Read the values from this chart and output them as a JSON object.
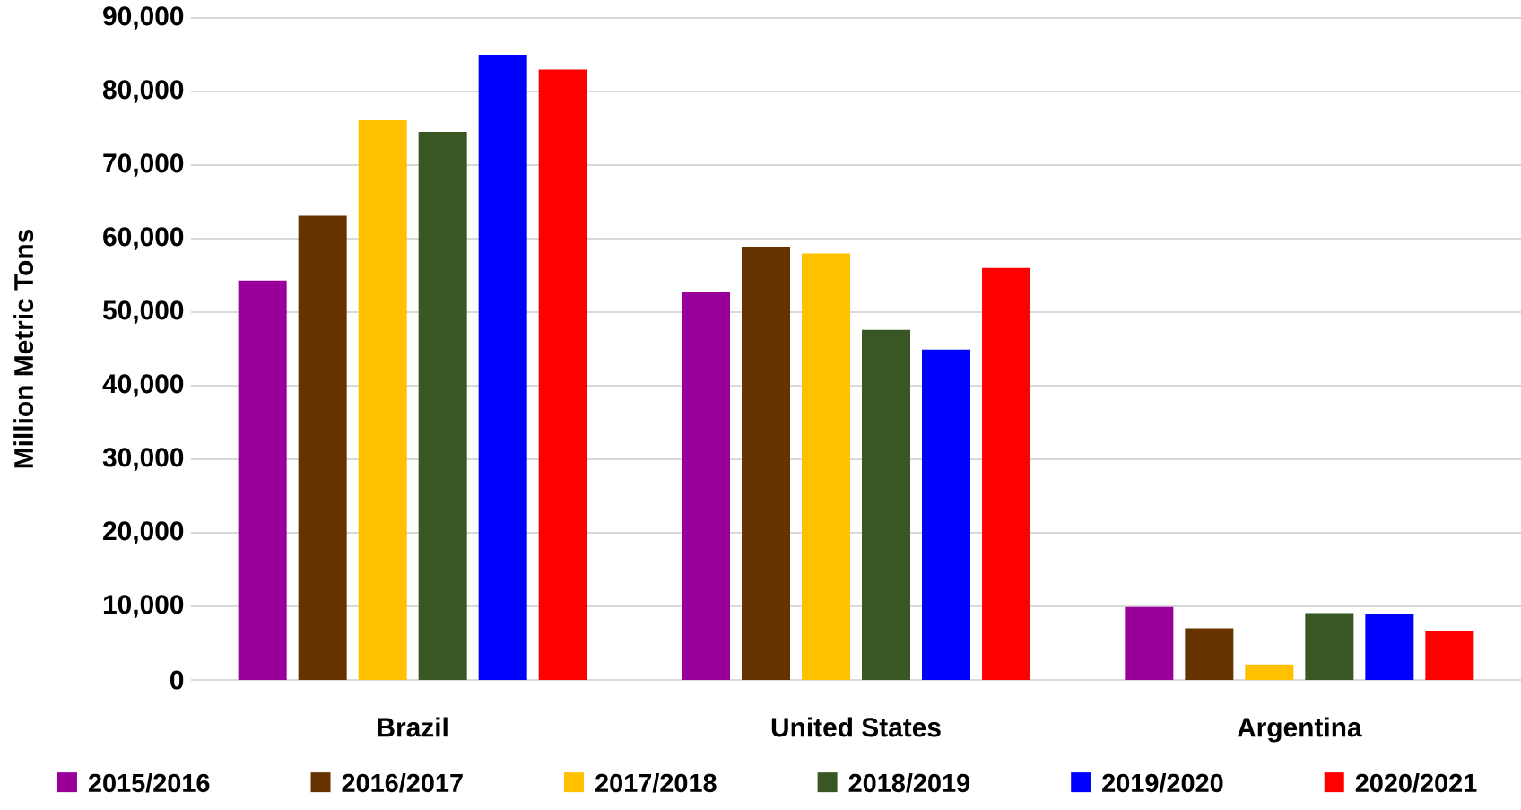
{
  "chart_data": {
    "type": "bar",
    "ylabel": "Million Metric Tons",
    "categories": [
      "Brazil",
      "United States",
      "Argentina"
    ],
    "series": [
      {
        "name": "2015/2016",
        "color": "#990099",
        "values": [
          54300,
          52800,
          9900
        ]
      },
      {
        "name": "2016/2017",
        "color": "#663300",
        "values": [
          63100,
          58900,
          7000
        ]
      },
      {
        "name": "2017/2018",
        "color": "#ffc000",
        "values": [
          76100,
          58000,
          2100
        ]
      },
      {
        "name": "2018/2019",
        "color": "#385723",
        "values": [
          74500,
          47600,
          9100
        ]
      },
      {
        "name": "2019/2020",
        "color": "#0000ff",
        "values": [
          85000,
          44900,
          8900
        ]
      },
      {
        "name": "2020/2021",
        "color": "#ff0000",
        "values": [
          83000,
          56000,
          6600
        ]
      }
    ],
    "ylim": [
      0,
      90000
    ],
    "yticks": [
      {
        "value": 0,
        "label": "0"
      },
      {
        "value": 10000,
        "label": "10,000"
      },
      {
        "value": 20000,
        "label": "20,000"
      },
      {
        "value": 30000,
        "label": "30,000"
      },
      {
        "value": 40000,
        "label": "40,000"
      },
      {
        "value": 50000,
        "label": "50,000"
      },
      {
        "value": 60000,
        "label": "60,000"
      },
      {
        "value": 70000,
        "label": "70,000"
      },
      {
        "value": 80000,
        "label": "80,000"
      },
      {
        "value": 90000,
        "label": "90,000"
      }
    ],
    "grid": "y",
    "legend": "bottom"
  }
}
